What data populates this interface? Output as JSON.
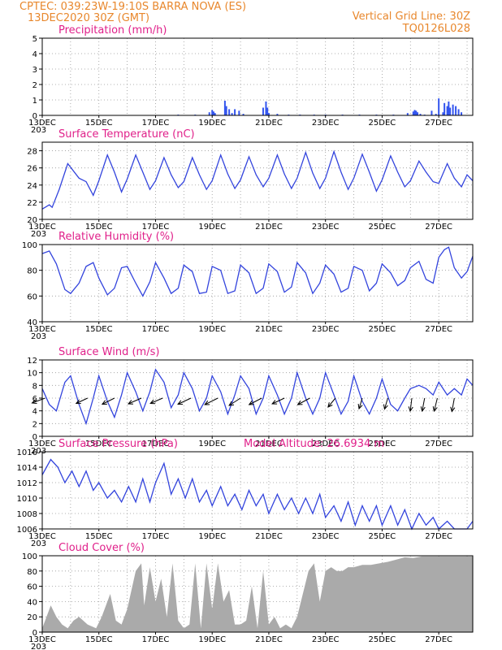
{
  "header": {
    "line1": "CPTEC:  039:23W-19:10S  BARRA NOVA (ES)",
    "line2": "13DEC2020 30Z (GMT)",
    "right1": "Vertical Grid Line: 30Z",
    "right2": "TQ0126L028"
  },
  "colors": {
    "header": "#e8872c",
    "title": "#e0208a",
    "line": "#3344dd",
    "bars": "#3355ee",
    "cloud": "#aaaaaa",
    "arrow": "#000000"
  },
  "x_ticks": [
    "13DEC",
    "15DEC",
    "17DEC",
    "19DEC",
    "21DEC",
    "23DEC",
    "25DEC",
    "27DEC"
  ],
  "x_tick_days": [
    13,
    15,
    17,
    19,
    21,
    23,
    25,
    27
  ],
  "x_stub": "203",
  "chart_data": [
    {
      "type": "bar",
      "title": "Precipitation (mm/h)",
      "xrange": [
        13,
        28.2
      ],
      "ylim": [
        0,
        5
      ],
      "yticks": [
        "0",
        "1",
        "2",
        "3",
        "4",
        "5"
      ],
      "x": [
        13.1,
        13.6,
        14.2,
        14.8,
        15.4,
        16.0,
        16.6,
        17.2,
        17.8,
        18.4,
        18.9,
        19.0,
        19.05,
        19.1,
        19.45,
        19.5,
        19.6,
        19.7,
        19.8,
        19.95,
        20.1,
        20.8,
        20.9,
        20.95,
        21.0,
        21.3,
        21.7,
        22.1,
        22.6,
        23.0,
        23.6,
        24.2,
        24.8,
        25.4,
        25.9,
        26.1,
        26.15,
        26.2,
        26.25,
        26.35,
        26.5,
        26.75,
        26.9,
        27.0,
        27.15,
        27.2,
        27.3,
        27.35,
        27.4,
        27.5,
        27.6,
        27.7,
        27.8
      ],
      "values": [
        0.02,
        0.02,
        0.02,
        0.02,
        0.02,
        0.02,
        0.02,
        0.02,
        0.05,
        0.05,
        0.2,
        0.35,
        0.25,
        0.15,
        0.95,
        0.6,
        0.4,
        0.15,
        0.4,
        0.3,
        0.1,
        0.5,
        0.9,
        0.5,
        0.15,
        0.1,
        0.05,
        0.05,
        0.05,
        0.05,
        0.05,
        0.05,
        0.05,
        0.05,
        0.15,
        0.25,
        0.35,
        0.3,
        0.2,
        0.1,
        0.05,
        0.3,
        0.1,
        1.1,
        0.2,
        0.8,
        0.6,
        0.9,
        0.5,
        0.7,
        0.6,
        0.4,
        0.2
      ]
    },
    {
      "type": "line",
      "title": "Surface Temperature (nC)",
      "xrange": [
        13,
        28.2
      ],
      "ylim": [
        20,
        29
      ],
      "yticks": [
        "20",
        "22",
        "24",
        "26",
        "28"
      ],
      "x": [
        13.0,
        13.25,
        13.35,
        13.6,
        13.9,
        14.3,
        14.55,
        14.8,
        15.0,
        15.3,
        15.55,
        15.8,
        16.0,
        16.3,
        16.55,
        16.8,
        17.0,
        17.3,
        17.55,
        17.8,
        18.0,
        18.3,
        18.55,
        18.8,
        19.0,
        19.3,
        19.55,
        19.8,
        20.0,
        20.3,
        20.55,
        20.8,
        21.0,
        21.3,
        21.55,
        21.8,
        22.0,
        22.3,
        22.55,
        22.8,
        23.0,
        23.3,
        23.55,
        23.8,
        24.0,
        24.3,
        24.55,
        24.8,
        25.0,
        25.3,
        25.55,
        25.8,
        26.0,
        26.3,
        26.55,
        26.8,
        27.0,
        27.3,
        27.55,
        27.8,
        28.0,
        28.2
      ],
      "values": [
        21.2,
        21.7,
        21.4,
        23.5,
        26.5,
        24.8,
        24.4,
        22.8,
        24.5,
        27.5,
        25.5,
        23.2,
        24.7,
        27.5,
        25.5,
        23.5,
        24.5,
        27.2,
        25.2,
        23.7,
        24.4,
        27.2,
        25.2,
        23.5,
        24.5,
        27.5,
        25.3,
        23.6,
        24.6,
        27.3,
        25.2,
        23.8,
        24.8,
        27.5,
        25.3,
        23.6,
        24.8,
        27.8,
        25.4,
        23.6,
        24.8,
        27.9,
        25.5,
        23.5,
        24.8,
        27.6,
        25.5,
        23.3,
        24.6,
        27.4,
        25.5,
        23.8,
        24.5,
        26.8,
        25.5,
        24.4,
        24.2,
        26.5,
        24.8,
        23.8,
        25.2,
        24.5
      ]
    },
    {
      "type": "line",
      "title": "Relative Humidity (%)",
      "xrange": [
        13,
        28.2
      ],
      "ylim": [
        40,
        100
      ],
      "yticks": [
        "40",
        "60",
        "80",
        "100"
      ],
      "x": [
        13.0,
        13.25,
        13.5,
        13.8,
        14.0,
        14.3,
        14.55,
        14.8,
        15.0,
        15.3,
        15.55,
        15.8,
        16.0,
        16.3,
        16.55,
        16.8,
        17.0,
        17.3,
        17.55,
        17.8,
        18.0,
        18.3,
        18.55,
        18.8,
        19.0,
        19.3,
        19.55,
        19.8,
        20.0,
        20.3,
        20.55,
        20.8,
        21.0,
        21.3,
        21.55,
        21.8,
        22.0,
        22.3,
        22.55,
        22.8,
        23.0,
        23.3,
        23.55,
        23.8,
        24.0,
        24.3,
        24.55,
        24.8,
        25.0,
        25.3,
        25.55,
        25.8,
        26.0,
        26.3,
        26.55,
        26.8,
        27.0,
        27.2,
        27.35,
        27.55,
        27.8,
        28.0,
        28.2
      ],
      "values": [
        93,
        95,
        85,
        65,
        62,
        70,
        83,
        86,
        74,
        61,
        66,
        82,
        83,
        70,
        60,
        71,
        86,
        74,
        62,
        66,
        84,
        79,
        62,
        63,
        83,
        80,
        62,
        64,
        84,
        78,
        62,
        66,
        85,
        79,
        63,
        67,
        86,
        78,
        62,
        70,
        84,
        77,
        63,
        66,
        83,
        80,
        64,
        70,
        85,
        78,
        68,
        72,
        82,
        87,
        73,
        70,
        90,
        96,
        98,
        82,
        74,
        79,
        91
      ]
    },
    {
      "type": "line",
      "title": "Surface Wind (m/s)",
      "xrange": [
        13,
        28.2
      ],
      "ylim": [
        0,
        12
      ],
      "yticks": [
        "0",
        "2",
        "4",
        "6",
        "8",
        "10",
        "12"
      ],
      "x": [
        13.0,
        13.25,
        13.5,
        13.8,
        14.0,
        14.3,
        14.55,
        14.8,
        15.0,
        15.3,
        15.55,
        15.8,
        16.0,
        16.3,
        16.55,
        16.8,
        17.0,
        17.3,
        17.55,
        17.8,
        18.0,
        18.3,
        18.55,
        18.8,
        19.0,
        19.3,
        19.55,
        19.8,
        20.0,
        20.3,
        20.55,
        20.8,
        21.0,
        21.3,
        21.55,
        21.8,
        22.0,
        22.3,
        22.55,
        22.8,
        23.0,
        23.3,
        23.55,
        23.8,
        24.0,
        24.3,
        24.55,
        24.8,
        25.0,
        25.3,
        25.55,
        25.8,
        26.0,
        26.3,
        26.55,
        26.8,
        27.0,
        27.3,
        27.55,
        27.8,
        28.0,
        28.2
      ],
      "values": [
        7.5,
        5.0,
        4.0,
        8.5,
        9.5,
        5.0,
        2.0,
        6.0,
        9.5,
        5.5,
        3.0,
        6.5,
        10.0,
        7.0,
        4.0,
        7.0,
        10.5,
        8.5,
        4.5,
        6.5,
        10.0,
        7.5,
        4.0,
        6.0,
        9.5,
        7.0,
        3.5,
        6.5,
        9.5,
        7.5,
        3.5,
        6.0,
        9.5,
        6.5,
        3.5,
        6.0,
        10.0,
        6.0,
        3.5,
        6.0,
        10.0,
        6.5,
        3.5,
        5.5,
        9.5,
        5.5,
        3.5,
        6.0,
        9.0,
        5.0,
        4.0,
        6.0,
        7.5,
        8.0,
        7.5,
        6.5,
        8.5,
        6.5,
        7.5,
        6.5,
        9.0,
        8.0
      ],
      "arrows": {
        "x": [
          13.1,
          14.6,
          15.55,
          16.5,
          17.25,
          18.25,
          19.2,
          20.0,
          20.75,
          21.55,
          22.45,
          23.35,
          24.3,
          25.2,
          26.05,
          26.5,
          26.95,
          27.55
        ],
        "u": [
          -3.2,
          -2.8,
          -3.0,
          -3.2,
          -3.0,
          -3.2,
          -3.2,
          -2.8,
          -3.1,
          -3.0,
          -3.0,
          -1.8,
          -0.8,
          -0.8,
          -0.4,
          -0.6,
          -0.8,
          -0.6
        ],
        "v": [
          -1.2,
          -1.3,
          -1.5,
          -1.4,
          -1.3,
          -1.5,
          -1.6,
          -1.8,
          -1.6,
          -1.4,
          -1.6,
          -2.2,
          -2.6,
          -2.7,
          -3.2,
          -3.2,
          -3.2,
          -3.3
        ]
      }
    },
    {
      "type": "line",
      "title": "Surface Pressure (hPa)",
      "extra": "Model Altitude: 26.6934 m",
      "xrange": [
        13,
        28.2
      ],
      "ylim": [
        1006,
        1016
      ],
      "yticks": [
        "1006",
        "1008",
        "1010",
        "1012",
        "1014",
        "1016"
      ],
      "x": [
        13.0,
        13.3,
        13.55,
        13.8,
        14.05,
        14.3,
        14.55,
        14.8,
        15.0,
        15.3,
        15.55,
        15.8,
        16.05,
        16.3,
        16.55,
        16.8,
        17.0,
        17.3,
        17.55,
        17.8,
        18.05,
        18.3,
        18.55,
        18.8,
        19.0,
        19.3,
        19.55,
        19.8,
        20.05,
        20.3,
        20.55,
        20.8,
        21.0,
        21.3,
        21.55,
        21.8,
        22.05,
        22.3,
        22.55,
        22.8,
        23.0,
        23.3,
        23.55,
        23.8,
        24.05,
        24.3,
        24.55,
        24.8,
        25.0,
        25.3,
        25.55,
        25.8,
        26.05,
        26.3,
        26.55,
        26.8,
        27.0,
        27.3,
        27.55,
        27.8,
        28.0,
        28.2
      ],
      "values": [
        1013.0,
        1015.0,
        1014.0,
        1012.0,
        1013.5,
        1011.5,
        1013.5,
        1011.0,
        1012.0,
        1010.0,
        1011.0,
        1009.5,
        1011.5,
        1009.5,
        1012.5,
        1009.5,
        1012.0,
        1014.5,
        1010.5,
        1012.5,
        1010.0,
        1012.5,
        1009.5,
        1011.0,
        1009.0,
        1011.5,
        1009.0,
        1010.5,
        1008.5,
        1011.0,
        1009.0,
        1010.5,
        1008.0,
        1010.5,
        1008.5,
        1010.0,
        1008.0,
        1010.0,
        1008.0,
        1010.5,
        1007.5,
        1009.0,
        1007.0,
        1009.5,
        1006.5,
        1009.0,
        1007.0,
        1009.0,
        1006.5,
        1009.0,
        1006.5,
        1008.5,
        1006.0,
        1008.0,
        1006.5,
        1007.5,
        1006.0,
        1007.0,
        1006.0,
        1006.0,
        1006.0,
        1007.0
      ]
    },
    {
      "type": "area",
      "title": "Cloud Cover (%)",
      "xrange": [
        13,
        28.2
      ],
      "ylim": [
        0,
        100
      ],
      "yticks": [
        "0",
        "20",
        "40",
        "60",
        "80",
        "100"
      ],
      "x": [
        13.0,
        13.3,
        13.5,
        13.7,
        13.9,
        14.1,
        14.3,
        14.6,
        14.9,
        15.1,
        15.4,
        15.6,
        15.8,
        16.0,
        16.3,
        16.5,
        16.6,
        16.8,
        17.0,
        17.2,
        17.4,
        17.6,
        17.8,
        18.0,
        18.2,
        18.4,
        18.6,
        18.8,
        19.0,
        19.2,
        19.4,
        19.6,
        19.8,
        20.0,
        20.2,
        20.4,
        20.6,
        20.8,
        21.0,
        21.2,
        21.4,
        21.6,
        21.8,
        22.0,
        22.2,
        22.4,
        22.6,
        22.8,
        23.0,
        23.2,
        23.4,
        23.6,
        23.8,
        24.0,
        24.3,
        24.6,
        24.9,
        25.2,
        25.5,
        25.8,
        26.1,
        26.4,
        26.7,
        27.0,
        27.3,
        27.6,
        27.9,
        28.2
      ],
      "values": [
        5,
        35,
        20,
        10,
        5,
        15,
        20,
        10,
        5,
        20,
        50,
        15,
        10,
        30,
        80,
        90,
        35,
        85,
        40,
        70,
        20,
        90,
        15,
        5,
        10,
        90,
        5,
        90,
        30,
        90,
        40,
        55,
        10,
        10,
        15,
        60,
        5,
        80,
        10,
        20,
        5,
        10,
        5,
        20,
        50,
        80,
        90,
        40,
        80,
        85,
        80,
        80,
        85,
        85,
        88,
        88,
        90,
        92,
        95,
        98,
        97,
        99,
        99,
        99,
        99,
        99,
        99,
        99
      ]
    }
  ]
}
